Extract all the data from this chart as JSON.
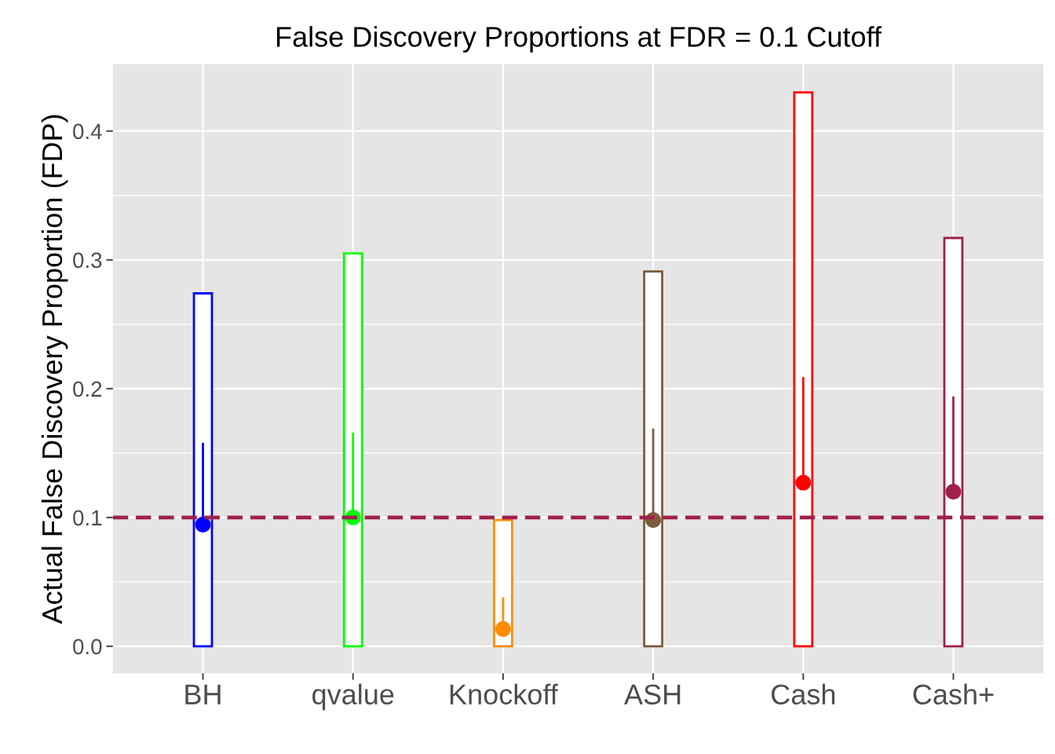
{
  "chart_data": {
    "type": "bar",
    "title": "False Discovery Proportions at FDR = 0.1 Cutoff",
    "ylabel": "Actual False Discovery Proportion (FDP)",
    "categories": [
      "BH",
      "qvalue",
      "Knockoff",
      "ASH",
      "Cash",
      "Cash+"
    ],
    "series": [
      {
        "colors": [
          "#0000ff",
          "#00ff00",
          "#ff8c00",
          "#7a5c3c",
          "#ff0000",
          "#a0204c"
        ],
        "values": [
          0.274,
          0.305,
          0.098,
          0.291,
          0.43,
          0.317
        ]
      },
      {
        "type": "scatter",
        "colors": [
          "#0000ff",
          "#00ff00",
          "#ff8c00",
          "#7a5c3c",
          "#ff0000",
          "#a0204c"
        ],
        "values": [
          0.0945,
          0.1,
          0.0134,
          0.098,
          0.127,
          0.12
        ],
        "errors": [
          [
            0.0945,
            0.158
          ],
          [
            0.1,
            0.166
          ],
          [
            0.0134,
            0.038
          ],
          [
            0.098,
            0.169
          ],
          [
            0.127,
            0.209
          ],
          [
            0.12,
            0.194
          ]
        ]
      }
    ],
    "ylim": [
      -0.021,
      0.452
    ],
    "yticks": [
      {
        "value": 0,
        "label": "0.0"
      },
      0.1,
      0.2,
      0.3,
      0.4
    ],
    "grid": true,
    "ref_lines": [
      {
        "axis": "y",
        "value": 0.1,
        "color": "#a0204c",
        "line_style": "dashed"
      }
    ]
  }
}
